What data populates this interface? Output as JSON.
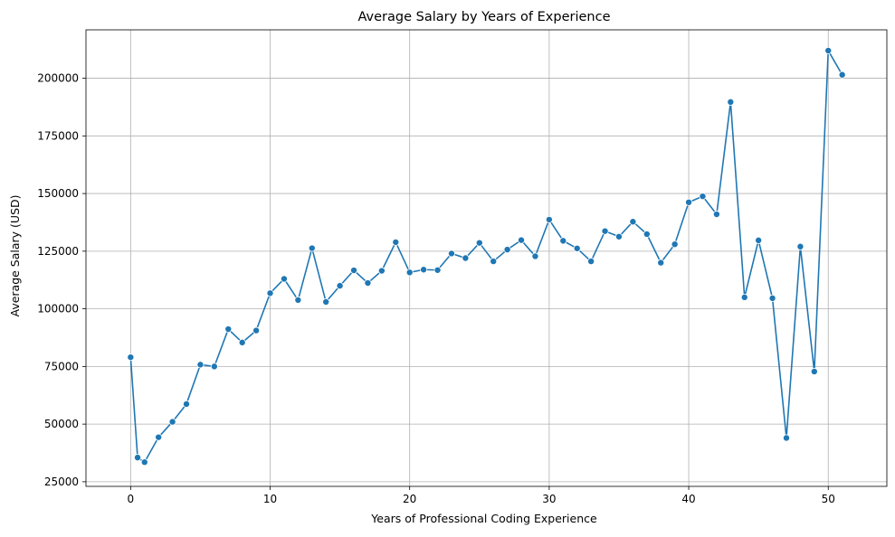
{
  "chart_data": {
    "type": "line",
    "title": "Average Salary by Years of Experience",
    "xlabel": "Years of Professional Coding Experience",
    "ylabel": "Average Salary (USD)",
    "xlim": [
      -3.2,
      54.2
    ],
    "ylim": [
      23000,
      221000
    ],
    "xticks": [
      0,
      10,
      20,
      30,
      40,
      50
    ],
    "yticks": [
      25000,
      50000,
      75000,
      100000,
      125000,
      150000,
      175000,
      200000
    ],
    "grid": true,
    "color": "#1f77b4",
    "series": [
      {
        "x": [
          0,
          0.5,
          1,
          2,
          3,
          4,
          5,
          6,
          7,
          8,
          9,
          10,
          11,
          12,
          13,
          14,
          15,
          16,
          17,
          18,
          19,
          20,
          21,
          22,
          23,
          24,
          25,
          26,
          27,
          28,
          29,
          30,
          31,
          32,
          33,
          34,
          35,
          36,
          37,
          38,
          39,
          40,
          41,
          42,
          43,
          44,
          45,
          46,
          47,
          48,
          49,
          50,
          51
        ],
        "y": [
          79000,
          35500,
          33500,
          44300,
          51000,
          58700,
          75800,
          75000,
          91200,
          85400,
          90600,
          106800,
          113000,
          103800,
          126300,
          103000,
          110000,
          116700,
          111200,
          116500,
          128900,
          115800,
          117000,
          116800,
          124000,
          122000,
          128600,
          120600,
          125700,
          129800,
          122800,
          138700,
          129500,
          126200,
          120600,
          133700,
          131300,
          137800,
          132400,
          120000,
          128000,
          146200,
          148800,
          141000,
          189700,
          105000,
          129700,
          104600,
          44000,
          127000,
          72800,
          212000,
          201500
        ]
      }
    ]
  }
}
